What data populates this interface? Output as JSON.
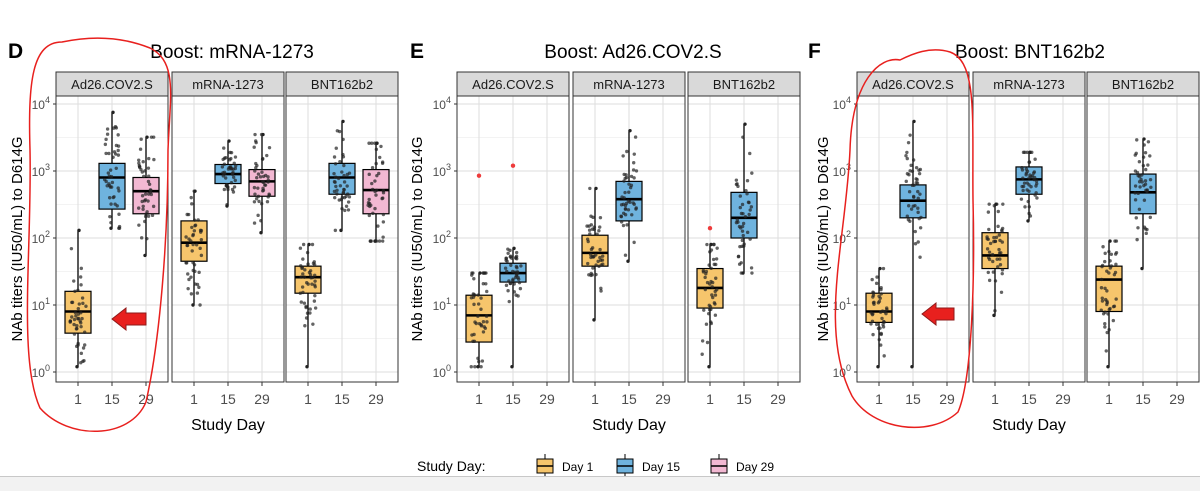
{
  "chart_data": [
    {
      "type": "box",
      "panel_letter": "D",
      "title": "Boost: mRNA-1273",
      "xlabel": "Study Day",
      "ylabel": "NAb titers (IU50/mL) to D614G",
      "yscale": "log10",
      "ylim": [
        1,
        10000
      ],
      "y_ticks": [
        "10",
        "10",
        "10",
        "10",
        "10"
      ],
      "y_tick_exps": [
        "0",
        "1",
        "2",
        "3",
        "4"
      ],
      "x_categories": [
        "1",
        "15",
        "29"
      ],
      "facets": [
        {
          "label": "Ad26.COV2.S",
          "boxes": [
            {
              "day": "1",
              "q1": 3.8,
              "median": 8,
              "q3": 16,
              "whisker_low": 1.2,
              "whisker_high": 130
            },
            {
              "day": "15",
              "q1": 270,
              "median": 800,
              "q3": 1300,
              "whisker_low": 140,
              "whisker_high": 7500
            },
            {
              "day": "29",
              "q1": 230,
              "median": 500,
              "q3": 800,
              "whisker_low": 55,
              "whisker_high": 3200
            }
          ]
        },
        {
          "label": "mRNA-1273",
          "boxes": [
            {
              "day": "1",
              "q1": 45,
              "median": 85,
              "q3": 180,
              "whisker_low": 10,
              "whisker_high": 500
            },
            {
              "day": "15",
              "q1": 650,
              "median": 900,
              "q3": 1250,
              "whisker_low": 300,
              "whisker_high": 2800
            },
            {
              "day": "29",
              "q1": 420,
              "median": 700,
              "q3": 1050,
              "whisker_low": 120,
              "whisker_high": 3500
            }
          ]
        },
        {
          "label": "BNT162b2",
          "boxes": [
            {
              "day": "1",
              "q1": 15,
              "median": 26,
              "q3": 38,
              "whisker_low": 1.2,
              "whisker_high": 80
            },
            {
              "day": "15",
              "q1": 450,
              "median": 800,
              "q3": 1300,
              "whisker_low": 130,
              "whisker_high": 5500
            },
            {
              "day": "29",
              "q1": 230,
              "median": 520,
              "q3": 1050,
              "whisker_low": 90,
              "whisker_high": 2600
            }
          ]
        }
      ]
    },
    {
      "type": "box",
      "panel_letter": "E",
      "title": "Boost: Ad26.COV2.S",
      "xlabel": "Study Day",
      "ylabel": "NAb titers (IU50/mL) to D614G",
      "yscale": "log10",
      "ylim": [
        1,
        10000
      ],
      "y_ticks": [
        "10",
        "10",
        "10",
        "10",
        "10"
      ],
      "y_tick_exps": [
        "0",
        "1",
        "2",
        "3",
        "4"
      ],
      "x_categories": [
        "1",
        "15",
        "29"
      ],
      "facets": [
        {
          "label": "Ad26.COV2.S",
          "boxes": [
            {
              "day": "1",
              "q1": 2.8,
              "median": 7,
              "q3": 14,
              "whisker_low": 1.2,
              "whisker_high": 30,
              "outliers": [
                850
              ]
            },
            {
              "day": "15",
              "q1": 22,
              "median": 30,
              "q3": 42,
              "whisker_low": 1.2,
              "whisker_high": 70,
              "outliers": [
                1200
              ]
            }
          ]
        },
        {
          "label": "mRNA-1273",
          "boxes": [
            {
              "day": "1",
              "q1": 38,
              "median": 60,
              "q3": 110,
              "whisker_low": 6,
              "whisker_high": 550
            },
            {
              "day": "15",
              "q1": 180,
              "median": 380,
              "q3": 700,
              "whisker_low": 45,
              "whisker_high": 4000
            }
          ]
        },
        {
          "label": "BNT162b2",
          "boxes": [
            {
              "day": "1",
              "q1": 9,
              "median": 18,
              "q3": 35,
              "whisker_low": 1.2,
              "whisker_high": 80,
              "outliers": [
                140
              ]
            },
            {
              "day": "15",
              "q1": 100,
              "median": 200,
              "q3": 480,
              "whisker_low": 30,
              "whisker_high": 5000
            }
          ]
        }
      ]
    },
    {
      "type": "box",
      "panel_letter": "F",
      "title": "Boost: BNT162b2",
      "xlabel": "Study Day",
      "ylabel": "NAb titers (IU50/mL) to D614G",
      "yscale": "log10",
      "ylim": [
        1,
        10000
      ],
      "y_ticks": [
        "10",
        "10",
        "10",
        "10",
        "10"
      ],
      "y_tick_exps": [
        "0",
        "1",
        "2",
        "3",
        "4"
      ],
      "x_categories": [
        "1",
        "15",
        "29"
      ],
      "facets": [
        {
          "label": "Ad26.COV2.S",
          "boxes": [
            {
              "day": "1",
              "q1": 5.5,
              "median": 8,
              "q3": 15,
              "whisker_low": 1.2,
              "whisker_high": 35
            },
            {
              "day": "15",
              "q1": 200,
              "median": 360,
              "q3": 620,
              "whisker_low": 1.2,
              "whisker_high": 5500
            }
          ]
        },
        {
          "label": "mRNA-1273",
          "boxes": [
            {
              "day": "1",
              "q1": 35,
              "median": 55,
              "q3": 120,
              "whisker_low": 7,
              "whisker_high": 320
            },
            {
              "day": "15",
              "q1": 450,
              "median": 750,
              "q3": 1150,
              "whisker_low": 180,
              "whisker_high": 1900
            }
          ]
        },
        {
          "label": "BNT162b2",
          "boxes": [
            {
              "day": "1",
              "q1": 8,
              "median": 24,
              "q3": 38,
              "whisker_low": 1.2,
              "whisker_high": 90
            },
            {
              "day": "15",
              "q1": 230,
              "median": 480,
              "q3": 900,
              "whisker_low": 35,
              "whisker_high": 3000
            }
          ]
        }
      ]
    }
  ],
  "legend": {
    "title": "Study Day:",
    "items": [
      {
        "label": "Day 1",
        "color": "#f6c56c"
      },
      {
        "label": "Day 15",
        "color": "#6fb3de"
      },
      {
        "label": "Day 29",
        "color": "#f2b8d2"
      }
    ],
    "position": "bottom"
  },
  "colors": {
    "day_1": "#f6c56c",
    "day_15": "#6fb3de",
    "day_29": "#f2b8d2",
    "strip_bg": "#d9d9d9",
    "annotation": "#e8201e",
    "outlier": "#ee3b3b"
  }
}
